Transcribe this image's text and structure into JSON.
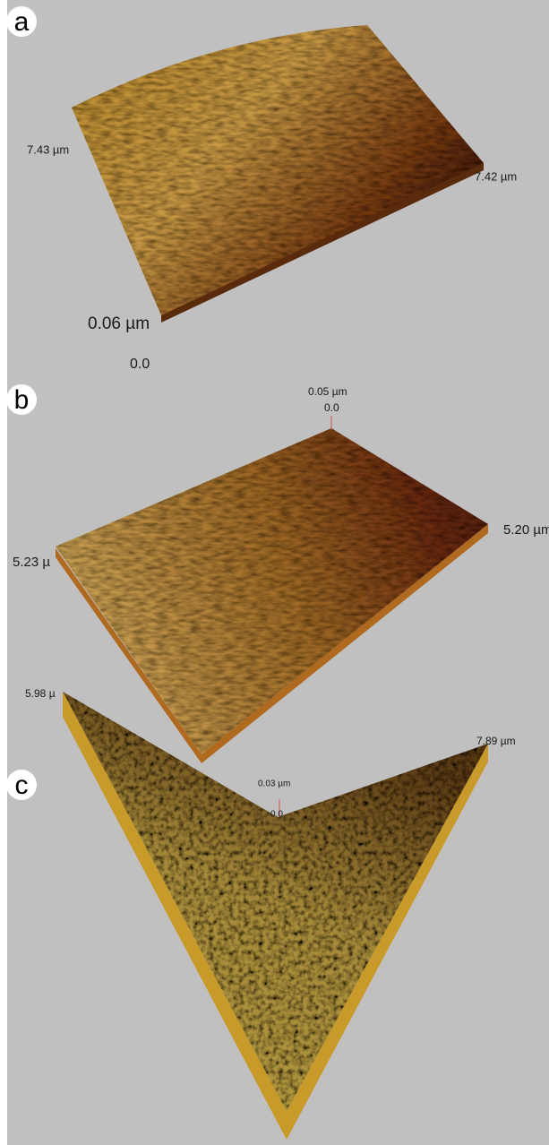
{
  "panels": [
    {
      "label": "a",
      "left_dimension": "7.43 µm",
      "right_dimension": "7.42 µm",
      "z_max": "0.06 µm",
      "z_min": "0.0"
    },
    {
      "label": "b",
      "z_max": "0.05 µm",
      "z_min": "0.0",
      "left_dimension": "5.23 µ",
      "right_dimension": "5.20 µm"
    },
    {
      "label": "c",
      "z_max": "0.03 µm",
      "z_min": "0.0",
      "left_dimension": "5.98 µ",
      "right_dimension": "7.89 µm"
    }
  ]
}
